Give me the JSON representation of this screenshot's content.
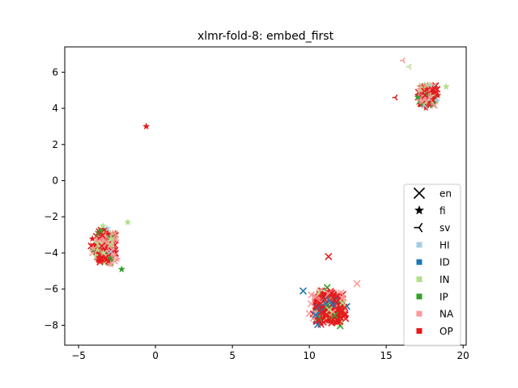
{
  "chart_data": {
    "type": "scatter",
    "title": "xlmr-fold-8: embed_first",
    "xlabel": "",
    "ylabel": "",
    "xlim": [
      -5.9,
      20.2
    ],
    "ylim": [
      -9.1,
      7.4
    ],
    "xticks": [
      -5,
      0,
      5,
      10,
      15,
      20
    ],
    "yticks": [
      -8,
      -6,
      -4,
      -2,
      0,
      2,
      4,
      6
    ],
    "grid": false,
    "legend_position": "lower-right",
    "marker_legend": [
      {
        "label": "en",
        "marker": "x"
      },
      {
        "label": "fi",
        "marker": "star"
      },
      {
        "label": "sv",
        "marker": "tri"
      }
    ],
    "series": [
      {
        "name": "HI",
        "color": "#a6cee3"
      },
      {
        "name": "ID",
        "color": "#1f78b4"
      },
      {
        "name": "IN",
        "color": "#b2df8a"
      },
      {
        "name": "IP",
        "color": "#33a02c"
      },
      {
        "name": "NA",
        "color": "#fb9a99"
      },
      {
        "name": "OP",
        "color": "#e31a1c"
      }
    ],
    "clusters": [
      {
        "name": "left",
        "cx": -3.3,
        "cy": -3.6,
        "rx": 1.1,
        "ry": 1.5,
        "markers": [
          "star",
          "x"
        ],
        "mix": [
          [
            "OP",
            0.5
          ],
          [
            "NA",
            0.28
          ],
          [
            "IN",
            0.1
          ],
          [
            "IP",
            0.07
          ],
          [
            "ID",
            0.03
          ],
          [
            "HI",
            0.02
          ]
        ]
      },
      {
        "name": "bottom",
        "cx": 11.3,
        "cy": -7.0,
        "rx": 1.7,
        "ry": 1.45,
        "markers": [
          "x"
        ],
        "mix": [
          [
            "OP",
            0.55
          ],
          [
            "NA",
            0.3
          ],
          [
            "IN",
            0.07
          ],
          [
            "IP",
            0.05
          ],
          [
            "ID",
            0.03
          ]
        ]
      },
      {
        "name": "top-right",
        "cx": 17.7,
        "cy": 4.7,
        "rx": 0.9,
        "ry": 0.9,
        "markers": [
          "x",
          "star"
        ],
        "mix": [
          [
            "OP",
            0.45
          ],
          [
            "NA",
            0.3
          ],
          [
            "IN",
            0.13
          ],
          [
            "IP",
            0.1
          ],
          [
            "HI",
            0.02
          ]
        ]
      }
    ],
    "outliers": [
      {
        "x": -0.6,
        "y": 3.0,
        "series": "OP",
        "marker": "star"
      },
      {
        "x": 11.25,
        "y": -4.2,
        "series": "OP",
        "marker": "x"
      },
      {
        "x": 15.6,
        "y": 4.6,
        "series": "OP",
        "marker": "tri"
      },
      {
        "x": 16.1,
        "y": 6.65,
        "series": "NA",
        "marker": "tri"
      },
      {
        "x": 16.5,
        "y": 6.3,
        "series": "IN",
        "marker": "tri"
      },
      {
        "x": 18.9,
        "y": 5.2,
        "series": "IN",
        "marker": "star"
      },
      {
        "x": -2.2,
        "y": -4.9,
        "series": "IP",
        "marker": "star"
      },
      {
        "x": -1.8,
        "y": -2.3,
        "series": "IN",
        "marker": "star"
      },
      {
        "x": 9.6,
        "y": -6.1,
        "series": "ID",
        "marker": "x"
      },
      {
        "x": 13.1,
        "y": -5.7,
        "series": "NA",
        "marker": "x"
      }
    ]
  }
}
